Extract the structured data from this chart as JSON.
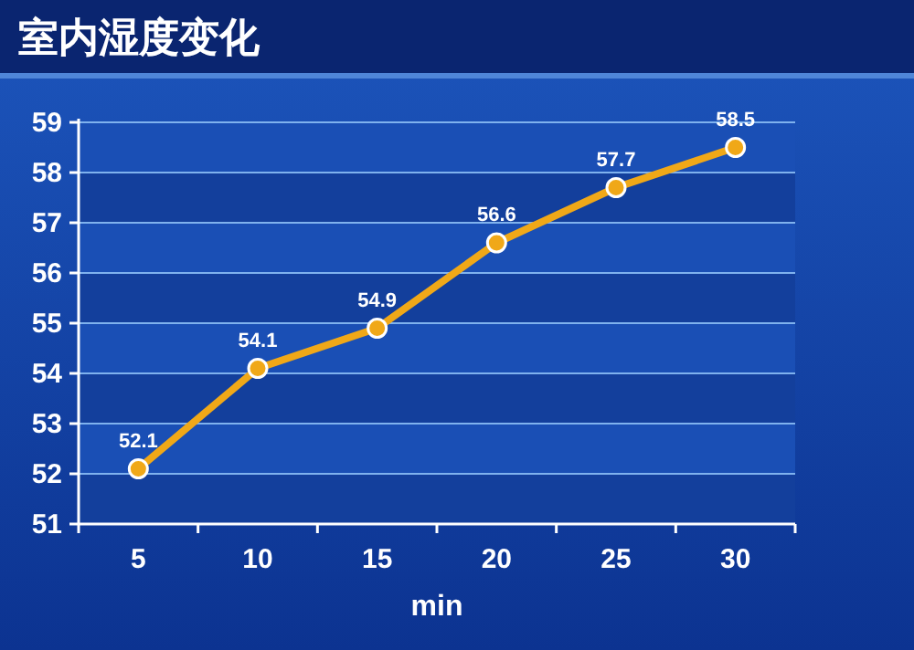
{
  "chart_data": {
    "type": "line",
    "title": "室内湿度变化",
    "xlabel": "min",
    "categories": [
      "5",
      "10",
      "15",
      "20",
      "25",
      "30"
    ],
    "series": [
      {
        "color": "#f0a818",
        "values": [
          52.1,
          54.1,
          54.9,
          56.6,
          57.7,
          58.5
        ]
      }
    ],
    "ylim": [
      51,
      59
    ],
    "yticks": [
      51,
      52,
      53,
      54,
      55,
      56,
      57,
      58,
      59
    ],
    "grid": "y",
    "marker": "circle",
    "data_labels": true
  }
}
